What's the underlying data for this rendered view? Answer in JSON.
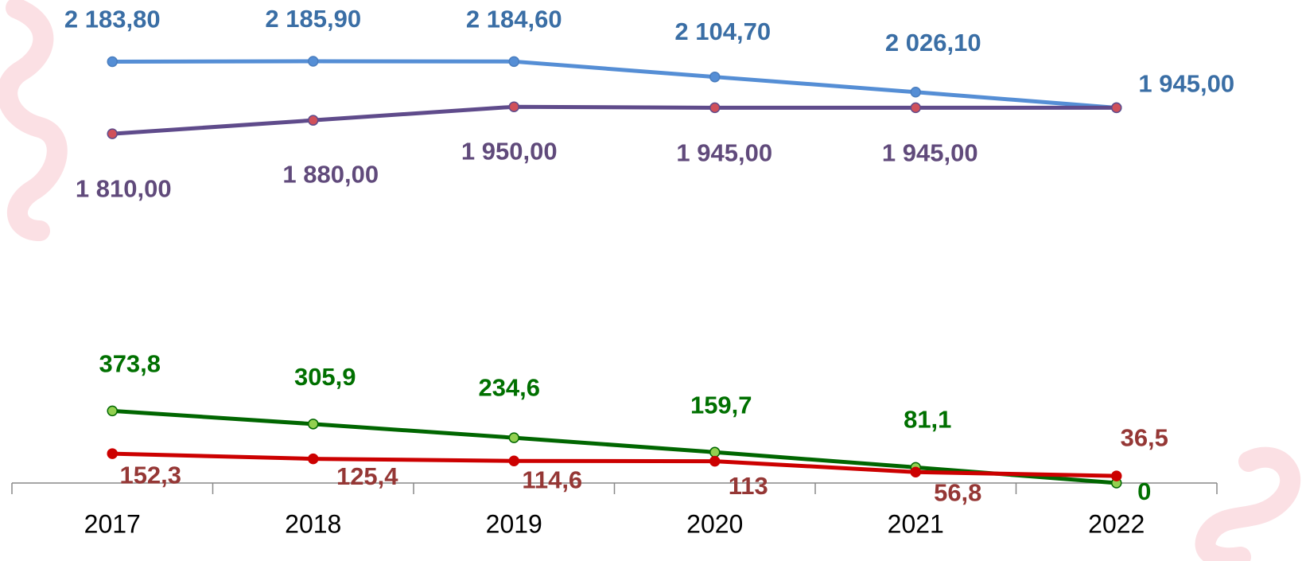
{
  "chart_data": {
    "type": "line",
    "categories": [
      "2017",
      "2018",
      "2019",
      "2020",
      "2021",
      "2022"
    ],
    "series": [
      {
        "name": null,
        "color": "#558ed5",
        "values": [
          2183.8,
          2185.9,
          2184.6,
          2104.7,
          2026.1,
          1945.0
        ],
        "value_labels": [
          "2 183,80",
          "2 185,90",
          "2 184,60",
          "2 104,70",
          "2 026,10",
          "1 945,00"
        ]
      },
      {
        "name": null,
        "color": "#5f4b8b",
        "values": [
          1810.0,
          1880.0,
          1950.0,
          1945.0,
          1945.0,
          1945.0
        ],
        "value_labels": [
          "1 810,00",
          "1 880,00",
          "1 950,00",
          "1 945,00",
          "1 945,00",
          null
        ]
      },
      {
        "name": null,
        "color": "#006600",
        "values": [
          373.8,
          305.9,
          234.6,
          159.7,
          81.1,
          0
        ],
        "value_labels": [
          "373,8",
          "305,9",
          "234,6",
          "159,7",
          "81,1",
          "0"
        ]
      },
      {
        "name": null,
        "color": "#cc0000",
        "values": [
          152.3,
          125.4,
          114.6,
          113,
          56.8,
          36.5
        ],
        "value_labels": [
          "152,3",
          "125,4",
          "114,6",
          "113",
          "56,8",
          "36,5"
        ]
      }
    ]
  }
}
